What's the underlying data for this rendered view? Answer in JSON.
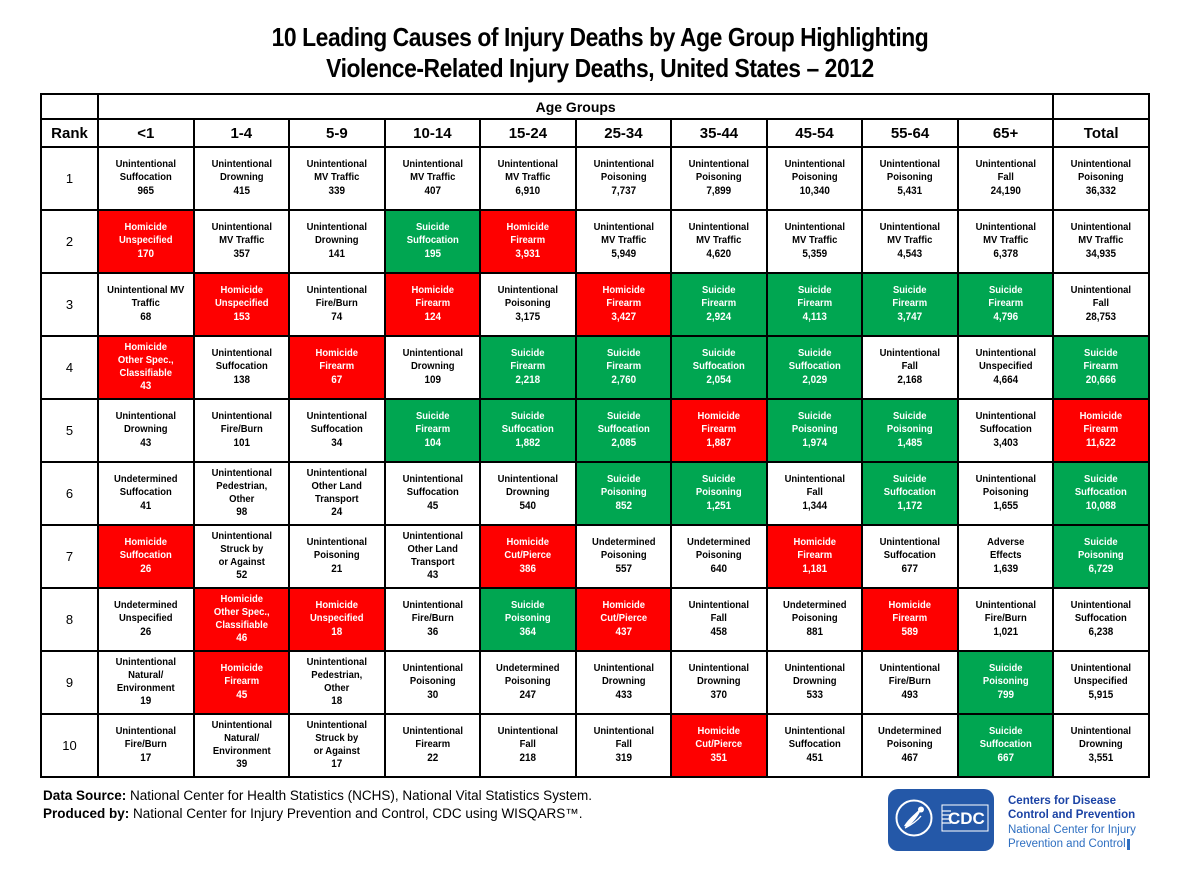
{
  "title": {
    "line1": "10 Leading Causes of Injury Deaths by Age Group Highlighting",
    "line2": "Violence-Related Injury Deaths, United States – 2012"
  },
  "chart_data": {
    "type": "table",
    "title": "10 Leading Causes of Injury Deaths by Age Group Highlighting Violence-Related Injury Deaths, United States – 2012",
    "age_groups_label": "Age Groups",
    "rank_header": "Rank",
    "columns": [
      "<1",
      "1-4",
      "5-9",
      "10-14",
      "15-24",
      "25-34",
      "35-44",
      "45-54",
      "55-64",
      "65+",
      "Total"
    ],
    "colors": {
      "homicide": "#FE0000",
      "suicide": "#00A651",
      "default": "#FFFFFF",
      "text_on_color": "#FFFFFF",
      "text_default": "#000000"
    },
    "rows": [
      {
        "rank": "1",
        "cells": [
          {
            "cause": "Unintentional\nSuffocation",
            "value": "965",
            "hl": ""
          },
          {
            "cause": "Unintentional\nDrowning",
            "value": "415",
            "hl": ""
          },
          {
            "cause": "Unintentional\nMV Traffic",
            "value": "339",
            "hl": ""
          },
          {
            "cause": "Unintentional\nMV Traffic",
            "value": "407",
            "hl": ""
          },
          {
            "cause": "Unintentional\nMV Traffic",
            "value": "6,910",
            "hl": ""
          },
          {
            "cause": "Unintentional\nPoisoning",
            "value": "7,737",
            "hl": ""
          },
          {
            "cause": "Unintentional\nPoisoning",
            "value": "7,899",
            "hl": ""
          },
          {
            "cause": "Unintentional\nPoisoning",
            "value": "10,340",
            "hl": ""
          },
          {
            "cause": "Unintentional\nPoisoning",
            "value": "5,431",
            "hl": ""
          },
          {
            "cause": "Unintentional\nFall",
            "value": "24,190",
            "hl": ""
          },
          {
            "cause": "Unintentional\nPoisoning",
            "value": "36,332",
            "hl": ""
          }
        ]
      },
      {
        "rank": "2",
        "cells": [
          {
            "cause": "Homicide\nUnspecified",
            "value": "170",
            "hl": "H"
          },
          {
            "cause": "Unintentional\nMV Traffic",
            "value": "357",
            "hl": ""
          },
          {
            "cause": "Unintentional\nDrowning",
            "value": "141",
            "hl": ""
          },
          {
            "cause": "Suicide\nSuffocation",
            "value": "195",
            "hl": "S"
          },
          {
            "cause": "Homicide\nFirearm",
            "value": "3,931",
            "hl": "H"
          },
          {
            "cause": "Unintentional\nMV Traffic",
            "value": "5,949",
            "hl": ""
          },
          {
            "cause": "Unintentional\nMV Traffic",
            "value": "4,620",
            "hl": ""
          },
          {
            "cause": "Unintentional\nMV Traffic",
            "value": "5,359",
            "hl": ""
          },
          {
            "cause": "Unintentional\nMV Traffic",
            "value": "4,543",
            "hl": ""
          },
          {
            "cause": "Unintentional\nMV Traffic",
            "value": "6,378",
            "hl": ""
          },
          {
            "cause": "Unintentional\nMV Traffic",
            "value": "34,935",
            "hl": ""
          }
        ]
      },
      {
        "rank": "3",
        "cells": [
          {
            "cause": "Unintentional MV\nTraffic",
            "value": "68",
            "hl": ""
          },
          {
            "cause": "Homicide\nUnspecified",
            "value": "153",
            "hl": "H"
          },
          {
            "cause": "Unintentional\nFire/Burn",
            "value": "74",
            "hl": ""
          },
          {
            "cause": "Homicide\nFirearm",
            "value": "124",
            "hl": "H"
          },
          {
            "cause": "Unintentional\nPoisoning",
            "value": "3,175",
            "hl": ""
          },
          {
            "cause": "Homicide\nFirearm",
            "value": "3,427",
            "hl": "H"
          },
          {
            "cause": "Suicide\nFirearm",
            "value": "2,924",
            "hl": "S"
          },
          {
            "cause": "Suicide\nFirearm",
            "value": "4,113",
            "hl": "S"
          },
          {
            "cause": "Suicide\nFirearm",
            "value": "3,747",
            "hl": "S"
          },
          {
            "cause": "Suicide\nFirearm",
            "value": "4,796",
            "hl": "S"
          },
          {
            "cause": "Unintentional\nFall",
            "value": "28,753",
            "hl": ""
          }
        ]
      },
      {
        "rank": "4",
        "cells": [
          {
            "cause": "Homicide\nOther Spec.,\nClassifiable",
            "value": "43",
            "hl": "H"
          },
          {
            "cause": "Unintentional\nSuffocation",
            "value": "138",
            "hl": ""
          },
          {
            "cause": "Homicide\nFirearm",
            "value": "67",
            "hl": "H"
          },
          {
            "cause": "Unintentional\nDrowning",
            "value": "109",
            "hl": ""
          },
          {
            "cause": "Suicide\nFirearm",
            "value": "2,218",
            "hl": "S"
          },
          {
            "cause": "Suicide\nFirearm",
            "value": "2,760",
            "hl": "S"
          },
          {
            "cause": "Suicide\nSuffocation",
            "value": "2,054",
            "hl": "S"
          },
          {
            "cause": "Suicide\nSuffocation",
            "value": "2,029",
            "hl": "S"
          },
          {
            "cause": "Unintentional\nFall",
            "value": "2,168",
            "hl": ""
          },
          {
            "cause": "Unintentional\nUnspecified",
            "value": "4,664",
            "hl": ""
          },
          {
            "cause": "Suicide\nFirearm",
            "value": "20,666",
            "hl": "S"
          }
        ]
      },
      {
        "rank": "5",
        "cells": [
          {
            "cause": "Unintentional\nDrowning",
            "value": "43",
            "hl": ""
          },
          {
            "cause": "Unintentional\nFire/Burn",
            "value": "101",
            "hl": ""
          },
          {
            "cause": "Unintentional\nSuffocation",
            "value": "34",
            "hl": ""
          },
          {
            "cause": "Suicide\nFirearm",
            "value": "104",
            "hl": "S"
          },
          {
            "cause": "Suicide\nSuffocation",
            "value": "1,882",
            "hl": "S"
          },
          {
            "cause": "Suicide\nSuffocation",
            "value": "2,085",
            "hl": "S"
          },
          {
            "cause": "Homicide\nFirearm",
            "value": "1,887",
            "hl": "H"
          },
          {
            "cause": "Suicide\nPoisoning",
            "value": "1,974",
            "hl": "S"
          },
          {
            "cause": "Suicide\nPoisoning",
            "value": "1,485",
            "hl": "S"
          },
          {
            "cause": "Unintentional\nSuffocation",
            "value": "3,403",
            "hl": ""
          },
          {
            "cause": "Homicide\nFirearm",
            "value": "11,622",
            "hl": "H"
          }
        ]
      },
      {
        "rank": "6",
        "cells": [
          {
            "cause": "Undetermined\nSuffocation",
            "value": "41",
            "hl": ""
          },
          {
            "cause": "Unintentional\nPedestrian,\nOther",
            "value": "98",
            "hl": ""
          },
          {
            "cause": "Unintentional\nOther Land\nTransport",
            "value": "24",
            "hl": ""
          },
          {
            "cause": "Unintentional\nSuffocation",
            "value": "45",
            "hl": ""
          },
          {
            "cause": "Unintentional\nDrowning",
            "value": "540",
            "hl": ""
          },
          {
            "cause": "Suicide\nPoisoning",
            "value": "852",
            "hl": "S"
          },
          {
            "cause": "Suicide\nPoisoning",
            "value": "1,251",
            "hl": "S"
          },
          {
            "cause": "Unintentional\nFall",
            "value": "1,344",
            "hl": ""
          },
          {
            "cause": "Suicide\nSuffocation",
            "value": "1,172",
            "hl": "S"
          },
          {
            "cause": "Unintentional\nPoisoning",
            "value": "1,655",
            "hl": ""
          },
          {
            "cause": "Suicide\nSuffocation",
            "value": "10,088",
            "hl": "S"
          }
        ]
      },
      {
        "rank": "7",
        "cells": [
          {
            "cause": "Homicide\nSuffocation",
            "value": "26",
            "hl": "H"
          },
          {
            "cause": "Unintentional\nStruck by\nor Against",
            "value": "52",
            "hl": ""
          },
          {
            "cause": "Unintentional\nPoisoning",
            "value": "21",
            "hl": ""
          },
          {
            "cause": "Unintentional\nOther Land\nTransport",
            "value": "43",
            "hl": ""
          },
          {
            "cause": "Homicide\nCut/Pierce",
            "value": "386",
            "hl": "H"
          },
          {
            "cause": "Undetermined\nPoisoning",
            "value": "557",
            "hl": ""
          },
          {
            "cause": "Undetermined\nPoisoning",
            "value": "640",
            "hl": ""
          },
          {
            "cause": "Homicide\nFirearm",
            "value": "1,181",
            "hl": "H"
          },
          {
            "cause": "Unintentional\nSuffocation",
            "value": "677",
            "hl": ""
          },
          {
            "cause": "Adverse\nEffects",
            "value": "1,639",
            "hl": ""
          },
          {
            "cause": "Suicide\nPoisoning",
            "value": "6,729",
            "hl": "S"
          }
        ]
      },
      {
        "rank": "8",
        "cells": [
          {
            "cause": "Undetermined\nUnspecified",
            "value": "26",
            "hl": ""
          },
          {
            "cause": "Homicide\nOther Spec.,\nClassifiable",
            "value": "46",
            "hl": "H"
          },
          {
            "cause": "Homicide\nUnspecified",
            "value": "18",
            "hl": "H"
          },
          {
            "cause": "Unintentional\nFire/Burn",
            "value": "36",
            "hl": ""
          },
          {
            "cause": "Suicide\nPoisoning",
            "value": "364",
            "hl": "S"
          },
          {
            "cause": "Homicide\nCut/Pierce",
            "value": "437",
            "hl": "H"
          },
          {
            "cause": "Unintentional\nFall",
            "value": "458",
            "hl": ""
          },
          {
            "cause": "Undetermined\nPoisoning",
            "value": "881",
            "hl": ""
          },
          {
            "cause": "Homicide\nFirearm",
            "value": "589",
            "hl": "H"
          },
          {
            "cause": "Unintentional\nFire/Burn",
            "value": "1,021",
            "hl": ""
          },
          {
            "cause": "Unintentional\nSuffocation",
            "value": "6,238",
            "hl": ""
          }
        ]
      },
      {
        "rank": "9",
        "cells": [
          {
            "cause": "Unintentional\nNatural/\nEnvironment",
            "value": "19",
            "hl": ""
          },
          {
            "cause": "Homicide\nFirearm",
            "value": "45",
            "hl": "H"
          },
          {
            "cause": "Unintentional\nPedestrian,\nOther",
            "value": "18",
            "hl": ""
          },
          {
            "cause": "Unintentional\nPoisoning",
            "value": "30",
            "hl": ""
          },
          {
            "cause": "Undetermined\nPoisoning",
            "value": "247",
            "hl": ""
          },
          {
            "cause": "Unintentional\nDrowning",
            "value": "433",
            "hl": ""
          },
          {
            "cause": "Unintentional\nDrowning",
            "value": "370",
            "hl": ""
          },
          {
            "cause": "Unintentional\nDrowning",
            "value": "533",
            "hl": ""
          },
          {
            "cause": "Unintentional\nFire/Burn",
            "value": "493",
            "hl": ""
          },
          {
            "cause": "Suicide\nPoisoning",
            "value": "799",
            "hl": "S"
          },
          {
            "cause": "Unintentional\nUnspecified",
            "value": "5,915",
            "hl": ""
          }
        ]
      },
      {
        "rank": "10",
        "cells": [
          {
            "cause": "Unintentional\nFire/Burn",
            "value": "17",
            "hl": ""
          },
          {
            "cause": "Unintentional\nNatural/\nEnvironment",
            "value": "39",
            "hl": ""
          },
          {
            "cause": "Unintentional\nStruck by\nor Against",
            "value": "17",
            "hl": ""
          },
          {
            "cause": "Unintentional\nFirearm",
            "value": "22",
            "hl": ""
          },
          {
            "cause": "Unintentional\nFall",
            "value": "218",
            "hl": ""
          },
          {
            "cause": "Unintentional\nFall",
            "value": "319",
            "hl": ""
          },
          {
            "cause": "Homicide\nCut/Pierce",
            "value": "351",
            "hl": "H"
          },
          {
            "cause": "Unintentional\nSuffocation",
            "value": "451",
            "hl": ""
          },
          {
            "cause": "Undetermined\nPoisoning",
            "value": "467",
            "hl": ""
          },
          {
            "cause": "Suicide\nSuffocation",
            "value": "667",
            "hl": "S"
          },
          {
            "cause": "Unintentional\nDrowning",
            "value": "3,551",
            "hl": ""
          }
        ]
      }
    ]
  },
  "footer": {
    "data_source_label": "Data Source:",
    "data_source_text": " National Center for Health Statistics (NCHS), National Vital Statistics System.",
    "produced_by_label": "Produced by:",
    "produced_by_text": " National Center for Injury Prevention and Control, CDC using WISQARS™."
  },
  "logo": {
    "cdc_acronym": "CDC",
    "line1": "Centers for Disease",
    "line2": "Control and Prevention",
    "line3": "National Center for Injury",
    "line4": "Prevention and Control",
    "box_color": "#2458A8",
    "text_bold_color": "#1B43A5",
    "text_light_color": "#2E6FC1"
  }
}
